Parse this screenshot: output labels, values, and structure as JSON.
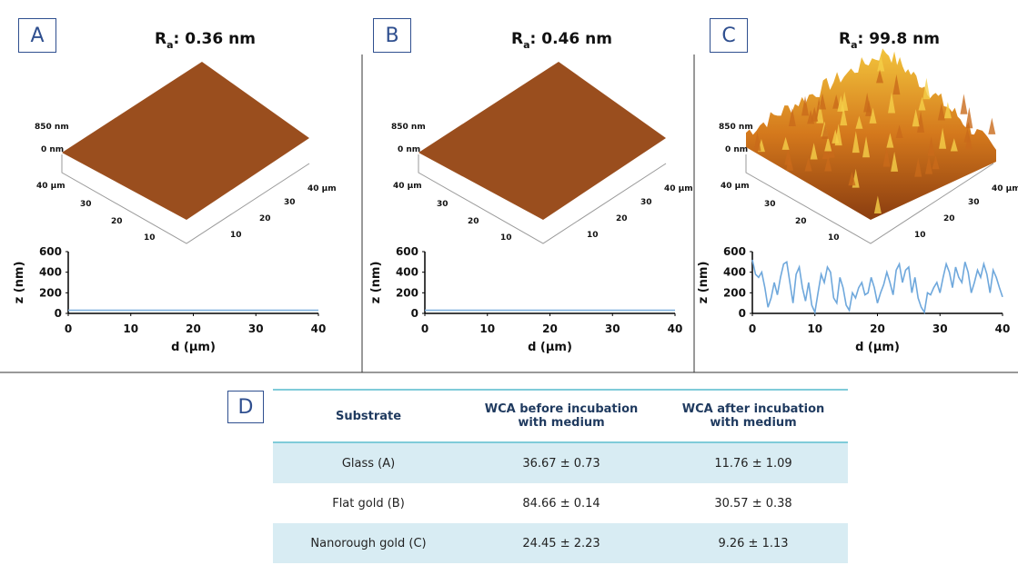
{
  "panels": [
    {
      "label": "A",
      "ra": {
        "symbol": "R",
        "subscript": "a",
        "value": ": 0.36 nm"
      },
      "surface": {
        "z_labels": [
          "850 nm",
          "0 nm"
        ],
        "left_labels": [
          "40 µm",
          "30",
          "20",
          "10"
        ],
        "right_labels": [
          "40 µm",
          "30",
          "20",
          "10"
        ]
      }
    },
    {
      "label": "B",
      "ra": {
        "symbol": "R",
        "subscript": "a",
        "value": ": 0.46 nm"
      },
      "surface": {
        "z_labels": [
          "850 nm",
          "0 nm"
        ],
        "left_labels": [
          "40 µm",
          "30",
          "20",
          "10"
        ],
        "right_labels": [
          "40 µm",
          "30",
          "20",
          "10"
        ]
      }
    },
    {
      "label": "C",
      "ra": {
        "symbol": "R",
        "subscript": "a",
        "value": ": 99.8 nm"
      },
      "surface": {
        "z_labels": [
          "850 nm",
          "0 nm"
        ],
        "left_labels": [
          "40 µm",
          "30",
          "20",
          "10"
        ],
        "right_labels": [
          "40 µm",
          "30",
          "20",
          "10"
        ]
      }
    }
  ],
  "chart_data": [
    {
      "type": "line",
      "xlabel": "d (µm)",
      "ylabel": "z (nm)",
      "x": [
        0,
        40
      ],
      "series": [
        {
          "color": "#7fb0de",
          "values": [
            30,
            30
          ]
        }
      ],
      "xlim": [
        0,
        40
      ],
      "ylim": [
        0,
        600
      ],
      "xticks": [
        0,
        10,
        20,
        30,
        40
      ],
      "yticks": [
        0,
        200,
        400,
        600
      ]
    },
    {
      "type": "line",
      "xlabel": "d (µm)",
      "ylabel": "z (nm)",
      "x": [
        0,
        40
      ],
      "series": [
        {
          "color": "#7fb0de",
          "values": [
            30,
            30
          ]
        }
      ],
      "xlim": [
        0,
        40
      ],
      "ylim": [
        0,
        600
      ],
      "xticks": [
        0,
        10,
        20,
        30,
        40
      ],
      "yticks": [
        0,
        200,
        400,
        600
      ]
    },
    {
      "type": "line",
      "xlabel": "d (µm)",
      "ylabel": "z (nm)",
      "x": [
        0,
        0.5,
        1,
        1.5,
        2,
        2.5,
        3,
        3.5,
        4,
        4.5,
        5,
        5.5,
        6,
        6.5,
        7,
        7.5,
        8,
        8.5,
        9,
        9.5,
        10,
        10.5,
        11,
        11.5,
        12,
        12.5,
        13,
        13.5,
        14,
        14.5,
        15,
        15.5,
        16,
        16.5,
        17,
        17.5,
        18,
        18.5,
        19,
        19.5,
        20,
        20.5,
        21,
        21.5,
        22,
        22.5,
        23,
        23.5,
        24,
        24.5,
        25,
        25.5,
        26,
        26.5,
        27,
        27.5,
        28,
        28.5,
        29,
        29.5,
        30,
        30.5,
        31,
        31.5,
        32,
        32.5,
        33,
        33.5,
        34,
        34.5,
        35,
        35.5,
        36,
        36.5,
        37,
        37.5,
        38,
        38.5,
        39,
        39.5,
        40
      ],
      "series": [
        {
          "color": "#6fa8dc",
          "values": [
            520,
            380,
            350,
            400,
            250,
            60,
            150,
            300,
            180,
            350,
            480,
            500,
            300,
            100,
            380,
            450,
            250,
            120,
            300,
            80,
            10,
            200,
            380,
            300,
            450,
            400,
            150,
            100,
            350,
            250,
            80,
            30,
            200,
            150,
            250,
            300,
            180,
            200,
            350,
            250,
            100,
            200,
            280,
            400,
            300,
            180,
            420,
            480,
            300,
            420,
            450,
            200,
            350,
            150,
            60,
            10,
            200,
            180,
            250,
            300,
            200,
            350,
            480,
            400,
            250,
            450,
            350,
            300,
            500,
            400,
            200,
            300,
            420,
            350,
            480,
            380,
            200,
            420,
            350,
            250,
            160
          ]
        }
      ],
      "xlim": [
        0,
        40
      ],
      "ylim": [
        0,
        600
      ],
      "xticks": [
        0,
        10,
        20,
        30,
        40
      ],
      "yticks": [
        0,
        200,
        400,
        600
      ]
    }
  ],
  "table": {
    "label": "D",
    "header": [
      "Substrate",
      "WCA before incubation with medium",
      "WCA after incubation with medium"
    ],
    "rows": [
      [
        "Glass (A)",
        "36.67 ± 0.73",
        "11.76 ± 1.09"
      ],
      [
        "Flat gold (B)",
        "84.66 ± 0.14",
        "30.57 ± 0.38"
      ],
      [
        "Nanorough gold (C)",
        "24.45 ± 2.23",
        "9.26 ± 1.13"
      ]
    ]
  }
}
